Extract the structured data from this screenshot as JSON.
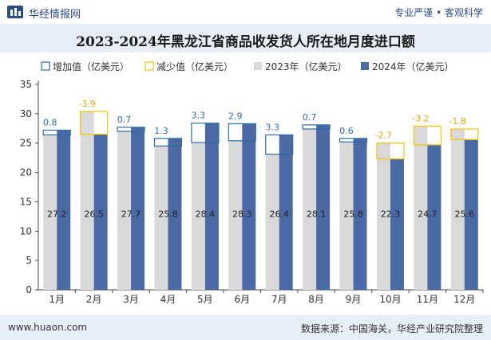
{
  "header": {
    "brand": "华经情报网",
    "tagline": "专业严谨 • 客观科学"
  },
  "footer": {
    "url": "www.huaon.com",
    "source": "数据来源：中国海关，华经产业研究院整理"
  },
  "colors": {
    "increase": "#2b6ca8",
    "decrease": "#f5c400",
    "series2023": "#d9d9d9",
    "series2024": "#4a6aa5",
    "decrease_label": "#e8a400",
    "increase_label": "#2b6ca8"
  },
  "chart_data": {
    "type": "bar",
    "title": "2023-2024年黑龙江省商品收发货人所在地月度进口额",
    "categories": [
      "1月",
      "2月",
      "3月",
      "4月",
      "5月",
      "6月",
      "7月",
      "8月",
      "9月",
      "10月",
      "11月",
      "12月"
    ],
    "legend": [
      "增加值（亿美元）",
      "减少值（亿美元）",
      "2023年（亿美元）",
      "2024年（亿美元）"
    ],
    "legend_placement": "top",
    "series": [
      {
        "name": "2023年（亿美元）",
        "values": [
          26.4,
          30.4,
          27.0,
          24.5,
          25.1,
          25.4,
          23.1,
          27.4,
          25.2,
          25.0,
          27.9,
          27.4
        ]
      },
      {
        "name": "2024年（亿美元）",
        "values": [
          27.2,
          26.5,
          27.7,
          25.8,
          28.4,
          28.3,
          26.4,
          28.1,
          25.8,
          22.3,
          24.7,
          25.6
        ]
      }
    ],
    "change_values": [
      0.8,
      -3.9,
      0.7,
      1.3,
      3.3,
      2.9,
      3.3,
      0.7,
      0.6,
      -2.7,
      -3.2,
      -1.8
    ],
    "change_labels": [
      "0.8",
      "-3.9",
      "0.7",
      "1.3",
      "3.3",
      "2.9",
      "3.3",
      "0.7",
      "0.6",
      "-2.7",
      "-3.2",
      "-1.8"
    ],
    "value_labels_2024": [
      "27.2",
      "26.5",
      "27.7",
      "25.8",
      "28.4",
      "28.3",
      "26.4",
      "28.1",
      "25.8",
      "22.3",
      "24.7",
      "25.6"
    ],
    "ylim": [
      0,
      35
    ],
    "yticks": [
      0,
      5,
      10,
      15,
      20,
      25,
      30,
      35
    ],
    "grid": false
  }
}
